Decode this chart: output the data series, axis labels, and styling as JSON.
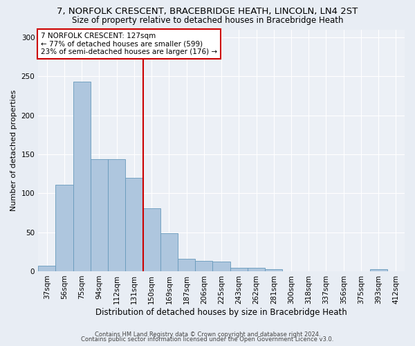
{
  "title": "7, NORFOLK CRESCENT, BRACEBRIDGE HEATH, LINCOLN, LN4 2ST",
  "subtitle": "Size of property relative to detached houses in Bracebridge Heath",
  "xlabel": "Distribution of detached houses by size in Bracebridge Heath",
  "ylabel": "Number of detached properties",
  "categories": [
    "37sqm",
    "56sqm",
    "75sqm",
    "94sqm",
    "112sqm",
    "131sqm",
    "150sqm",
    "169sqm",
    "187sqm",
    "206sqm",
    "225sqm",
    "243sqm",
    "262sqm",
    "281sqm",
    "300sqm",
    "318sqm",
    "337sqm",
    "356sqm",
    "375sqm",
    "393sqm",
    "412sqm"
  ],
  "values": [
    7,
    111,
    243,
    144,
    144,
    120,
    81,
    49,
    16,
    13,
    12,
    4,
    4,
    3,
    0,
    0,
    0,
    0,
    0,
    3,
    0
  ],
  "bar_color": "#aec6de",
  "bar_edge_color": "#6699bb",
  "property_line_x": 5.5,
  "annotation_line1": "7 NORFOLK CRESCENT: 127sqm",
  "annotation_line2": "← 77% of detached houses are smaller (599)",
  "annotation_line3": "23% of semi-detached houses are larger (176) →",
  "annotation_box_color": "#ffffff",
  "annotation_box_edge": "#cc0000",
  "line_color": "#cc0000",
  "footer1": "Contains HM Land Registry data © Crown copyright and database right 2024.",
  "footer2": "Contains public sector information licensed under the Open Government Licence v3.0.",
  "ylim": [
    0,
    310
  ],
  "yticks": [
    0,
    50,
    100,
    150,
    200,
    250,
    300
  ],
  "bg_color": "#e8edf4",
  "plot_bg_color": "#ecf0f6",
  "title_fontsize": 9.5,
  "subtitle_fontsize": 8.5,
  "ylabel_fontsize": 8,
  "xlabel_fontsize": 8.5,
  "tick_fontsize": 7.5,
  "footer_fontsize": 6,
  "annotation_fontsize": 7.5
}
